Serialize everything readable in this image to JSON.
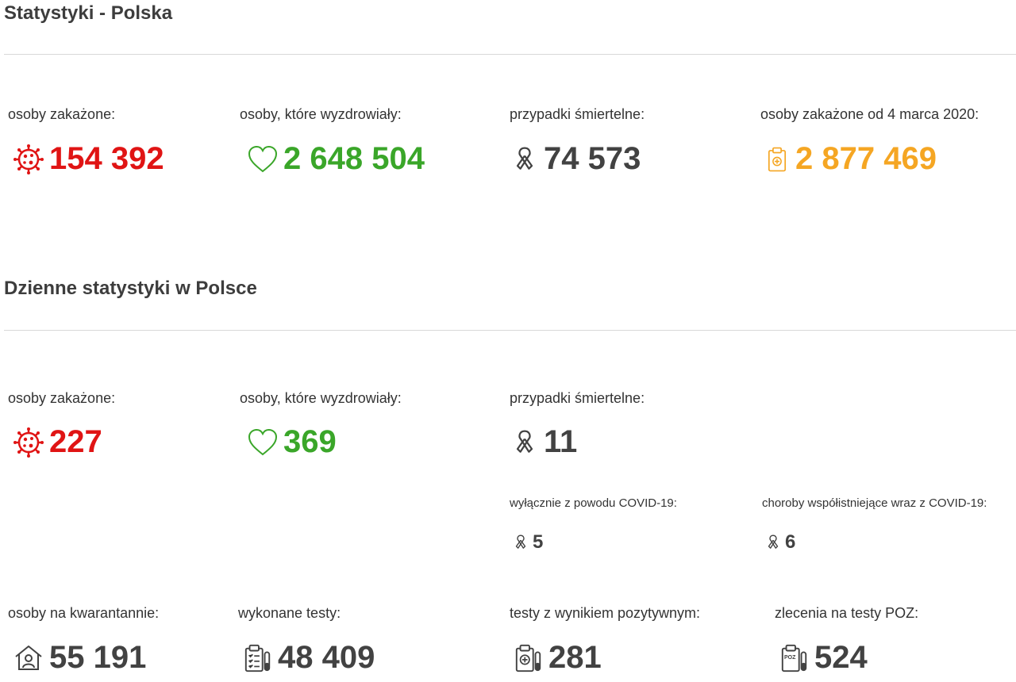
{
  "section1": {
    "title": "Statystyki - Polska",
    "items": [
      {
        "label": "osoby zakażone:",
        "value": "154 392",
        "icon": "virus-icon",
        "color": "#e01414"
      },
      {
        "label": "osoby, które wyzdrowiały:",
        "value": "2 648 504",
        "icon": "heart-icon",
        "color": "#3aa629"
      },
      {
        "label": "przypadki śmiertelne:",
        "value": "74 573",
        "icon": "ribbon-icon",
        "color": "#424242"
      },
      {
        "label": "osoby zakażone od 4 marca 2020:",
        "value": "2 877 469",
        "icon": "clipboard-plus-icon",
        "color": "#f5a623"
      }
    ]
  },
  "section2": {
    "title": "Dzienne statystyki w Polsce",
    "items": [
      {
        "label": "osoby zakażone:",
        "value": "227",
        "icon": "virus-icon",
        "color": "#e01414"
      },
      {
        "label": "osoby, które wyzdrowiały:",
        "value": "369",
        "icon": "heart-icon",
        "color": "#3aa629"
      },
      {
        "label": "przypadki śmiertelne:",
        "value": "11",
        "icon": "ribbon-icon",
        "color": "#424242"
      }
    ],
    "deaths_breakdown": [
      {
        "label": "wyłącznie z powodu COVID-19:",
        "value": "5",
        "icon": "ribbon-icon"
      },
      {
        "label": "choroby współistniejące wraz z COVID-19:",
        "value": "6",
        "icon": "ribbon-icon"
      }
    ],
    "bottom": [
      {
        "label": "osoby na kwarantannie:",
        "value": "55 191",
        "icon": "house-person-icon"
      },
      {
        "label": "wykonane testy:",
        "value": "48 409",
        "icon": "clipboard-test-icon"
      },
      {
        "label": "testy z wynikiem pozytywnym:",
        "value": "281",
        "icon": "clipboard-positive-icon"
      },
      {
        "label": "zlecenia na testy POZ:",
        "value": "524",
        "icon": "clipboard-poz-icon",
        "icon_text": "POZ"
      }
    ]
  }
}
